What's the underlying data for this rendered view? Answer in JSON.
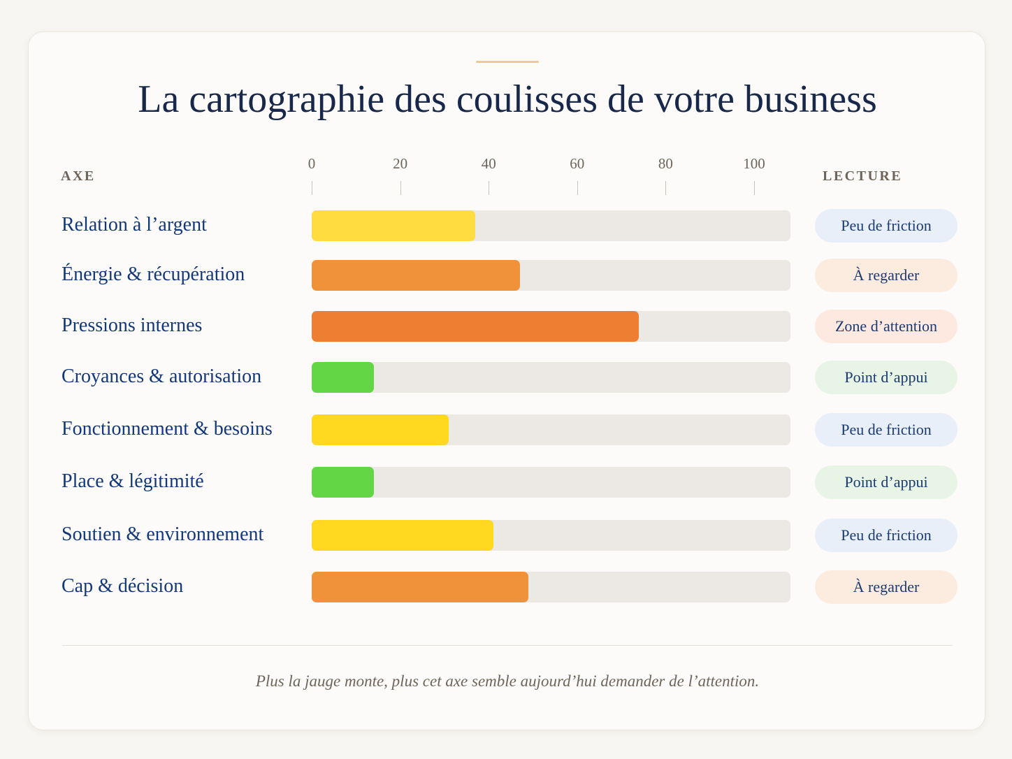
{
  "title": "La cartographie des coulisses de votre business",
  "headers": {
    "axe": "AXE",
    "lecture": "LECTURE"
  },
  "footnote": "Plus la jauge monte, plus cet axe semble aujourd’hui demander de l’attention.",
  "colors": {
    "title": "#17284a",
    "label": "#13387a",
    "track": "#ece8e3",
    "accent_line": "#efc993",
    "yellow": "#ffd81f",
    "orange": "#f0923a",
    "dark_orange": "#ee7e32",
    "green": "#62d645",
    "pill_blue": "#e9eff8",
    "pill_peach": "#fcece0",
    "pill_green": "#e8f4e5"
  },
  "chart_data": {
    "type": "bar",
    "orientation": "horizontal",
    "xlim": [
      0,
      100
    ],
    "ticks": [
      0,
      20,
      40,
      60,
      80,
      100
    ],
    "categories": [
      "Relation à l’argent",
      "Énergie & récupération",
      "Pressions internes",
      "Croyances & autorisation",
      "Fonctionnement & besoins",
      "Place & légitimité",
      "Soutien & environnement",
      "Cap & décision"
    ],
    "values": [
      37,
      47,
      74,
      14,
      31,
      14,
      41,
      49
    ],
    "bar_colors": [
      "#ffdc3f",
      "#f0923a",
      "#ee7e32",
      "#62d645",
      "#ffd81f",
      "#62d645",
      "#ffd81f",
      "#f0923a"
    ],
    "readings": [
      "Peu de friction",
      "À regarder",
      "Zone d’attention",
      "Point d’appui",
      "Peu de friction",
      "Point d’appui",
      "Peu de friction",
      "À regarder"
    ],
    "reading_colors": [
      "#e9eff8",
      "#fcece0",
      "#fde9df",
      "#e8f4e5",
      "#e9eff8",
      "#e8f4e5",
      "#e9eff8",
      "#fcece0"
    ],
    "grid": false,
    "legend": "none"
  }
}
